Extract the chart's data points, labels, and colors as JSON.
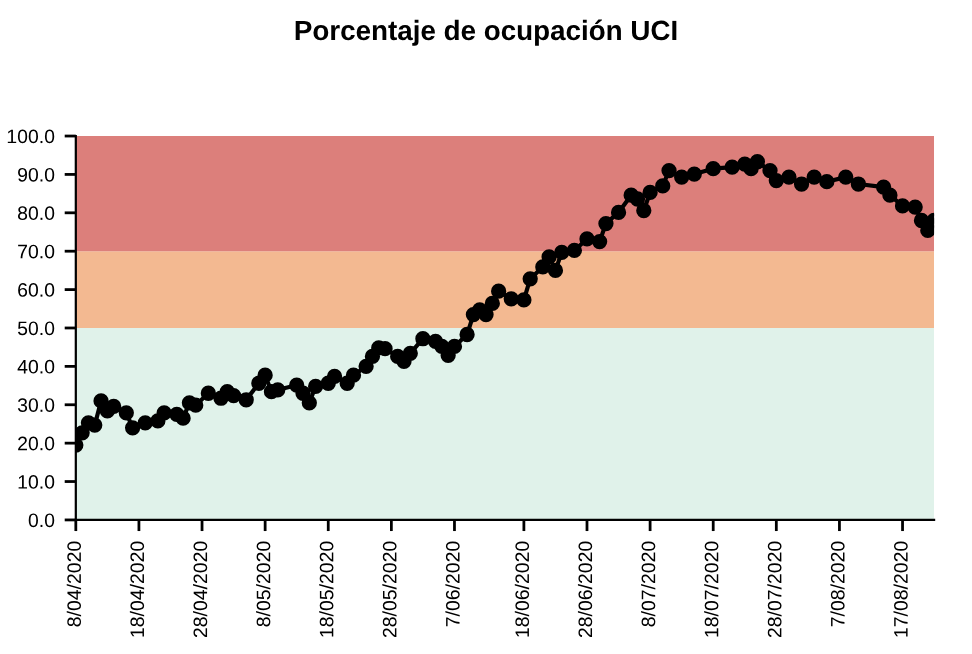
{
  "chart_data": {
    "type": "line",
    "title": "Porcentaje de ocupación UCI",
    "x": [
      "2020-04-08",
      "2020-04-09",
      "2020-04-10",
      "2020-04-11",
      "2020-04-12",
      "2020-04-13",
      "2020-04-14",
      "2020-04-16",
      "2020-04-17",
      "2020-04-19",
      "2020-04-21",
      "2020-04-22",
      "2020-04-24",
      "2020-04-25",
      "2020-04-26",
      "2020-04-27",
      "2020-04-29",
      "2020-05-01",
      "2020-05-02",
      "2020-05-03",
      "2020-05-05",
      "2020-05-07",
      "2020-05-08",
      "2020-05-09",
      "2020-05-10",
      "2020-05-13",
      "2020-05-14",
      "2020-05-15",
      "2020-05-16",
      "2020-05-18",
      "2020-05-19",
      "2020-05-21",
      "2020-05-22",
      "2020-05-24",
      "2020-05-25",
      "2020-05-26",
      "2020-05-27",
      "2020-05-29",
      "2020-05-30",
      "2020-05-31",
      "2020-06-02",
      "2020-06-04",
      "2020-06-05",
      "2020-06-06",
      "2020-06-07",
      "2020-06-09",
      "2020-06-10",
      "2020-06-11",
      "2020-06-12",
      "2020-06-13",
      "2020-06-14",
      "2020-06-16",
      "2020-06-18",
      "2020-06-19",
      "2020-06-21",
      "2020-06-22",
      "2020-06-23",
      "2020-06-24",
      "2020-06-26",
      "2020-06-28",
      "2020-06-30",
      "2020-07-01",
      "2020-07-03",
      "2020-07-05",
      "2020-07-06",
      "2020-07-07",
      "2020-07-08",
      "2020-07-10",
      "2020-07-11",
      "2020-07-13",
      "2020-07-15",
      "2020-07-18",
      "2020-07-21",
      "2020-07-23",
      "2020-07-24",
      "2020-07-25",
      "2020-07-27",
      "2020-07-28",
      "2020-07-30",
      "2020-08-01",
      "2020-08-03",
      "2020-08-05",
      "2020-08-08",
      "2020-08-10",
      "2020-08-14",
      "2020-08-15",
      "2020-08-17",
      "2020-08-19",
      "2020-08-20",
      "2020-08-21",
      "2020-08-22"
    ],
    "series": [
      {
        "color": "#000000",
        "values": [
          19.5,
          22.7,
          25.3,
          24.7,
          31.0,
          28.4,
          29.6,
          27.9,
          24.0,
          25.3,
          25.8,
          27.9,
          27.5,
          26.5,
          30.5,
          29.9,
          33.0,
          31.7,
          33.4,
          32.4,
          31.3,
          35.6,
          37.7,
          33.4,
          33.9,
          35.1,
          33.0,
          30.5,
          34.8,
          35.6,
          37.4,
          35.6,
          37.7,
          40.0,
          42.6,
          44.8,
          44.6,
          42.6,
          41.3,
          43.4,
          47.2,
          46.5,
          45.2,
          42.9,
          45.2,
          48.3,
          53.5,
          54.7,
          53.5,
          56.4,
          59.6,
          57.6,
          57.3,
          62.8,
          65.9,
          68.5,
          65.0,
          69.7,
          70.2,
          73.2,
          72.5,
          77.2,
          80.1,
          84.6,
          83.6,
          80.6,
          85.3,
          87.0,
          91.0,
          89.3,
          90.1,
          91.5,
          91.9,
          92.7,
          91.5,
          93.3,
          91.0,
          88.4,
          89.3,
          87.5,
          89.3,
          88.1,
          89.3,
          87.5,
          86.7,
          84.6,
          81.8,
          81.5,
          78.0,
          75.4,
          78.0
        ]
      }
    ],
    "marker": "circle",
    "line_style": "solid",
    "grid": false,
    "legend": false,
    "xlim": [
      "2020-04-08",
      "2020-08-22"
    ],
    "xticks": [
      {
        "value": "2020-04-08",
        "label": "8/04/2020"
      },
      {
        "value": "2020-04-18",
        "label": "18/04/2020"
      },
      {
        "value": "2020-04-28",
        "label": "28/04/2020"
      },
      {
        "value": "2020-05-08",
        "label": "8/05/2020"
      },
      {
        "value": "2020-05-18",
        "label": "18/05/2020"
      },
      {
        "value": "2020-05-28",
        "label": "28/05/2020"
      },
      {
        "value": "2020-06-07",
        "label": "7/06/2020"
      },
      {
        "value": "2020-06-18",
        "label": "18/06/2020"
      },
      {
        "value": "2020-06-28",
        "label": "28/06/2020"
      },
      {
        "value": "2020-07-08",
        "label": "8/07/2020"
      },
      {
        "value": "2020-07-18",
        "label": "18/07/2020"
      },
      {
        "value": "2020-07-28",
        "label": "28/07/2020"
      },
      {
        "value": "2020-08-07",
        "label": "7/08/2020"
      },
      {
        "value": "2020-08-17",
        "label": "17/08/2020"
      }
    ],
    "ylim": [
      0,
      100
    ],
    "yticks": [
      {
        "value": 0,
        "label": "0.0"
      },
      {
        "value": 10,
        "label": "10.0"
      },
      {
        "value": 20,
        "label": "20.0"
      },
      {
        "value": 30,
        "label": "30.0"
      },
      {
        "value": 40,
        "label": "40.0"
      },
      {
        "value": 50,
        "label": "50.0"
      },
      {
        "value": 60,
        "label": "60.0"
      },
      {
        "value": 70,
        "label": "70.0"
      },
      {
        "value": 80,
        "label": "80.0"
      },
      {
        "value": 90,
        "label": "90.0"
      },
      {
        "value": 100,
        "label": "100.0"
      }
    ],
    "bands": [
      {
        "axis": "y",
        "from": 0,
        "to": 50,
        "color": "#e0f2ea"
      },
      {
        "axis": "y",
        "from": 50,
        "to": 70,
        "color": "#f3b991"
      },
      {
        "axis": "y",
        "from": 70,
        "to": 100,
        "color": "#dc7f7b"
      }
    ]
  }
}
